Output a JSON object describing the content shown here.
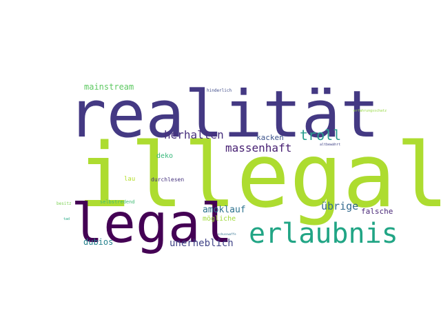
{
  "words": {
    "realitaet": {
      "text": "realität",
      "color": "#443983"
    },
    "illegal": {
      "text": "illegal",
      "color": "#addc30"
    },
    "legal": {
      "text": "legal",
      "color": "#440154"
    },
    "erlaubnis": {
      "text": "erlaubnis",
      "color": "#21a585"
    },
    "mainstream": {
      "text": "mainstream",
      "color": "#5ec962"
    },
    "herhalten": {
      "text": "herhalten",
      "color": "#472f7d"
    },
    "troll": {
      "text": "troll",
      "color": "#2a9d8f"
    },
    "massenhaft": {
      "text": "massenhaft",
      "color": "#482173"
    },
    "kacken": {
      "text": "kacken",
      "color": "#3b528b"
    },
    "deko": {
      "text": "deko",
      "color": "#35b779"
    },
    "lau": {
      "text": "lau",
      "color": "#b5de2b"
    },
    "durchlesen": {
      "text": "durchlesen",
      "color": "#46337e"
    },
    "amoklauf": {
      "text": "amoklauf",
      "color": "#2c728e"
    },
    "uebrige": {
      "text": "übrige",
      "color": "#31688e"
    },
    "falsche": {
      "text": "falsche",
      "color": "#482677"
    },
    "moegliche": {
      "text": "mögliche",
      "color": "#a0da39"
    },
    "unerheblich": {
      "text": "unerheblich",
      "color": "#414487"
    },
    "dubios": {
      "text": "dubios",
      "color": "#26828e"
    },
    "selbstredend": {
      "text": "selbstredend",
      "color": "#3fbc73"
    },
    "besitz": {
      "text": "besitz",
      "color": "#7ad151"
    },
    "tad": {
      "text": "tad",
      "color": "#22a884"
    },
    "hinderlich": {
      "text": "hinderlich",
      "color": "#3e4a89"
    },
    "erfahrungsschatz": {
      "text": "erfahrungsschatz",
      "color": "#95d840"
    },
    "altbewaehrt": {
      "text": "altbewährt",
      "color": "#414487"
    },
    "schusswaffe": {
      "text": "schusswaffe",
      "color": "#2d708e"
    }
  }
}
